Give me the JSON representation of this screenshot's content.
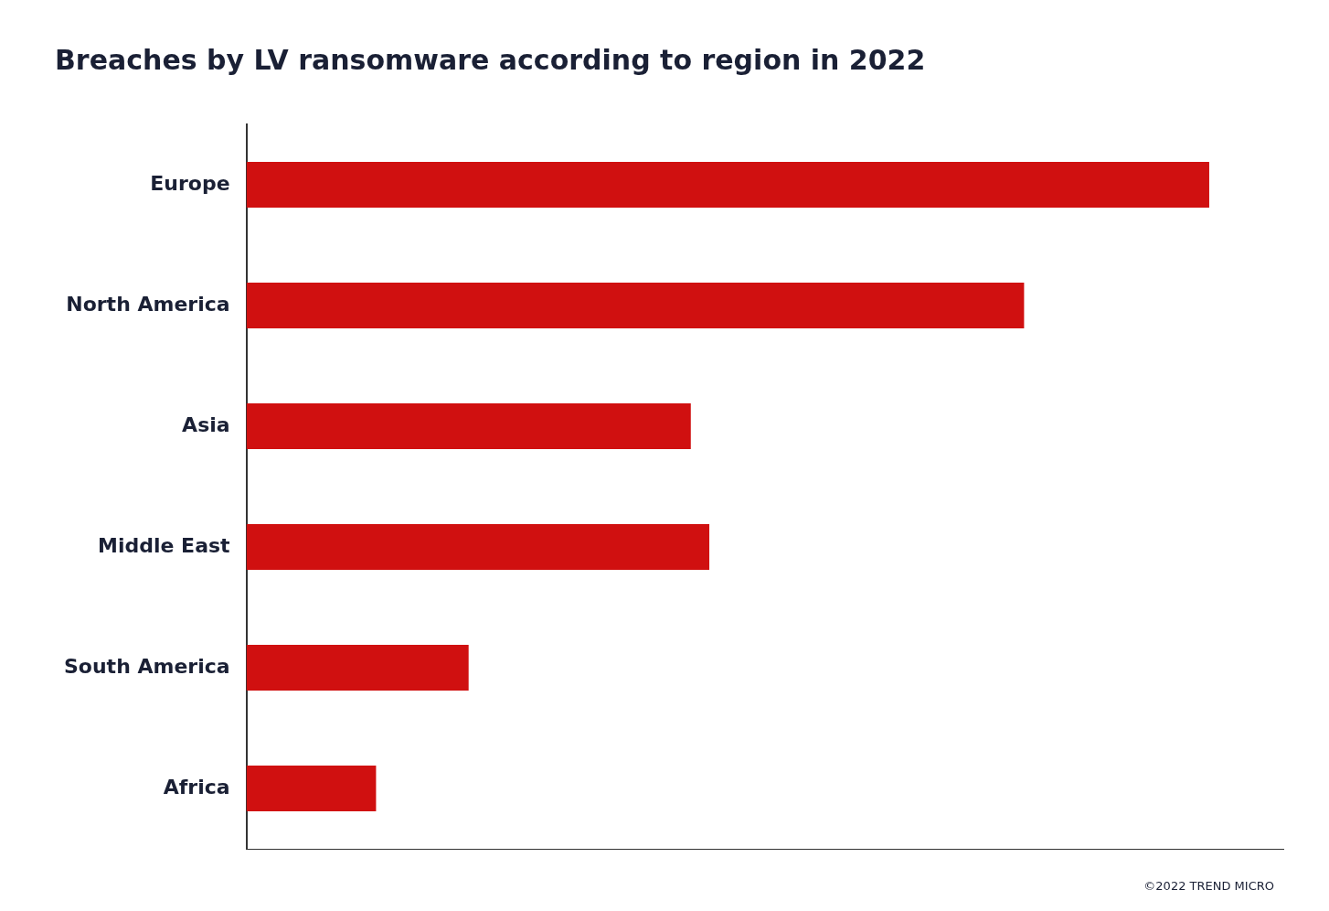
{
  "chart_data": {
    "type": "bar",
    "orientation": "horizontal",
    "title": "Breaches by LV ransomware according to region in 2022",
    "categories": [
      "Europe",
      "North America",
      "Asia",
      "Middle East",
      "South America",
      "Africa"
    ],
    "values": [
      26,
      21,
      12,
      12.5,
      6,
      3.5
    ],
    "color": "#d01010",
    "xlim": [
      0,
      28
    ],
    "grid": false,
    "tick_labels": "y",
    "annotations": [
      "©2022 TREND MICRO"
    ]
  }
}
